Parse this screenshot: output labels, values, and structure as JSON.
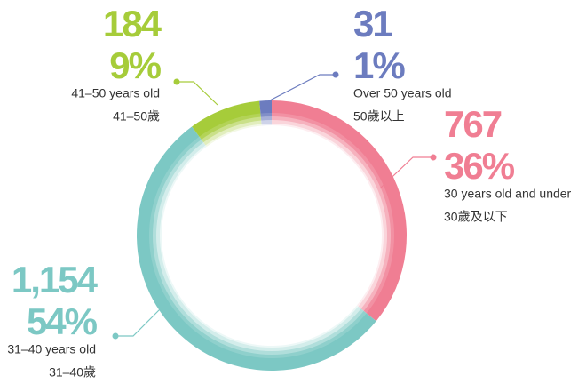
{
  "chart_data": {
    "type": "donut",
    "categories": [
      "30 years old and under",
      "31–40 years old",
      "41–50 years old",
      "Over 50 years old"
    ],
    "categories_zh": [
      "30歲及以下",
      "31–40歲",
      "41–50歲",
      "50歲以上"
    ],
    "values": [
      767,
      1154,
      184,
      31
    ],
    "value_labels": [
      "767",
      "1,154",
      "184",
      "31"
    ],
    "shares": [
      "36%",
      "54%",
      "9%",
      "1%"
    ],
    "colors": [
      "#f07e93",
      "#7cc8c4",
      "#a6cc3a",
      "#6c7cbf"
    ]
  }
}
